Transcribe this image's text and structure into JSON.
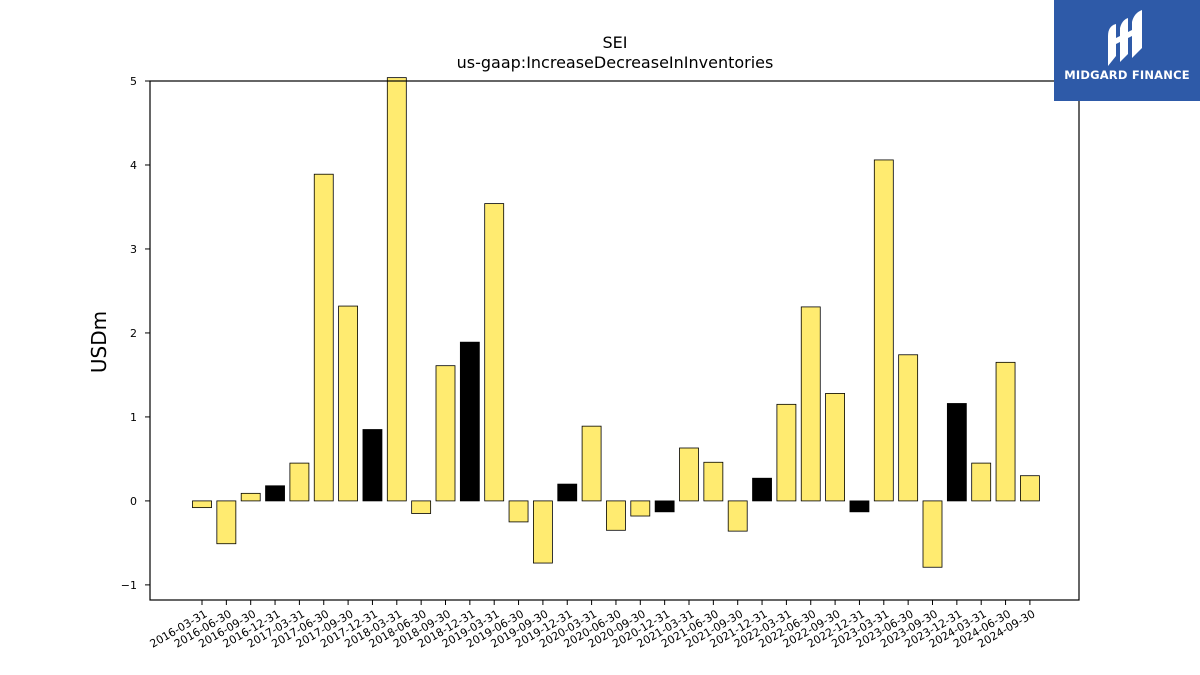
{
  "chart_data": {
    "type": "bar",
    "title": "SEI",
    "subtitle": "us-gaap:IncreaseDecreaseInInventories",
    "xlabel": "",
    "ylabel": "USDm",
    "ylim": [
      -1.18,
      5.0
    ],
    "yticks": [
      -1,
      0,
      1,
      2,
      3,
      4,
      5
    ],
    "ytick_labels": [
      "−1",
      "0",
      "1",
      "2",
      "3",
      "4",
      "5"
    ],
    "grid": false,
    "categories": [
      "2016-03-31",
      "2016-06-30",
      "2016-09-30",
      "2016-12-31",
      "2017-03-31",
      "2017-06-30",
      "2017-09-30",
      "2017-12-31",
      "2018-03-31",
      "2018-06-30",
      "2018-09-30",
      "2018-12-31",
      "2019-03-31",
      "2019-06-30",
      "2019-09-30",
      "2019-12-31",
      "2020-03-31",
      "2020-06-30",
      "2020-09-30",
      "2020-12-31",
      "2021-03-31",
      "2021-06-30",
      "2021-09-30",
      "2021-12-31",
      "2022-03-31",
      "2022-06-30",
      "2022-09-30",
      "2022-12-31",
      "2023-03-31",
      "2023-06-30",
      "2023-09-30",
      "2023-12-31",
      "2024-03-31",
      "2024-06-30",
      "2024-09-30"
    ],
    "values": [
      -0.08,
      -0.51,
      0.09,
      0.18,
      0.45,
      3.89,
      2.32,
      0.85,
      5.04,
      -0.15,
      1.61,
      1.89,
      3.54,
      -0.25,
      -0.74,
      0.2,
      0.89,
      -0.35,
      -0.18,
      -0.13,
      0.63,
      0.46,
      -0.36,
      0.27,
      1.15,
      2.31,
      1.28,
      -0.13,
      4.06,
      1.74,
      -0.79,
      1.16,
      0.45,
      1.65,
      0.3
    ],
    "bar_colors": [
      "#ffeb70",
      "#ffeb70",
      "#ffeb70",
      "#000000",
      "#ffeb70",
      "#ffeb70",
      "#ffeb70",
      "#000000",
      "#ffeb70",
      "#ffeb70",
      "#ffeb70",
      "#000000",
      "#ffeb70",
      "#ffeb70",
      "#ffeb70",
      "#000000",
      "#ffeb70",
      "#ffeb70",
      "#ffeb70",
      "#000000",
      "#ffeb70",
      "#ffeb70",
      "#ffeb70",
      "#000000",
      "#ffeb70",
      "#ffeb70",
      "#ffeb70",
      "#000000",
      "#ffeb70",
      "#ffeb70",
      "#ffeb70",
      "#000000",
      "#ffeb70",
      "#ffeb70",
      "#ffeb70"
    ]
  },
  "logo": {
    "text": "MIDGARD FINANCE",
    "background": "#2e5aa8",
    "icon": "midgard-logo-icon"
  }
}
